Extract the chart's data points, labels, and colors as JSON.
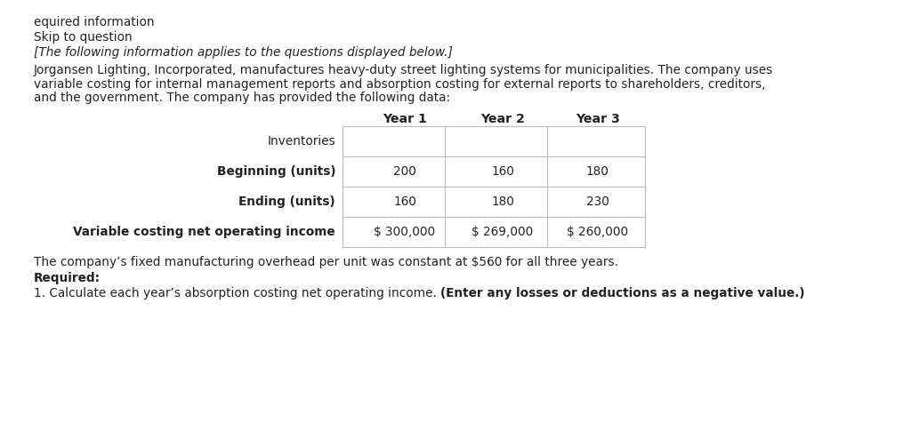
{
  "line1": "equired information",
  "line2": "Skip to question",
  "line3": "[The following information applies to the questions displayed below.]",
  "para1_lines": [
    "Jorgansen Lighting, Incorporated, manufactures heavy-duty street lighting systems for municipalities. The company uses",
    "variable costing for internal management reports and absorption costing for external reports to shareholders, creditors,",
    "and the government. The company has provided the following data:"
  ],
  "table_headers": [
    "Year 1",
    "Year 2",
    "Year 3"
  ],
  "row_labels": [
    "Inventories",
    "Beginning (units)",
    "Ending (units)",
    "Variable costing net operating income"
  ],
  "row_bold": [
    false,
    true,
    true,
    true
  ],
  "data": [
    [
      "",
      "",
      ""
    ],
    [
      "200",
      "160",
      "180"
    ],
    [
      "160",
      "180",
      "230"
    ],
    [
      "$ 300,000",
      "$ 269,000",
      "$ 260,000"
    ]
  ],
  "footnote": "The company’s fixed manufacturing overhead per unit was constant at $560 for all three years.",
  "required_label": "Required:",
  "question_normal": "1. Calculate each year’s absorption costing net operating income. ",
  "question_bold": "(Enter any losses or deductions as a negative value.)",
  "bg_color": "#ffffff",
  "text_color": "#222222",
  "table_line_color": "#bbbbbb",
  "fs": 9.8,
  "fs_header": 10.2
}
